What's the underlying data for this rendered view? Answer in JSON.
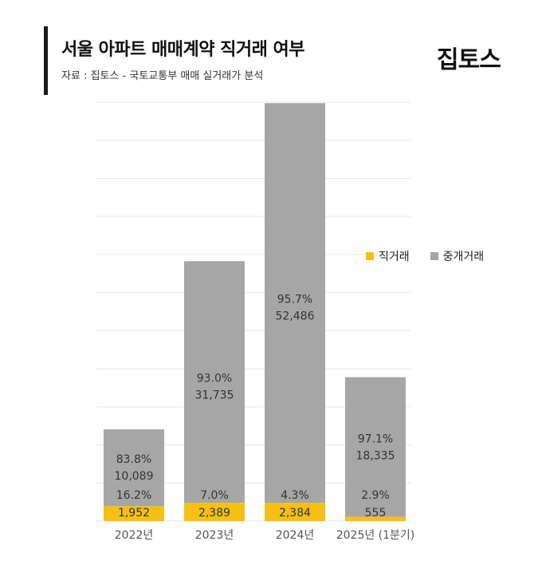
{
  "header": {
    "title": "서울 아파트 매매계약 직거래 여부",
    "subtitle": "자료 : 집토스 - 국토교통부 매매 실거래가 분석",
    "logo_text": "집토스"
  },
  "colors": {
    "direct": "#f5bf14",
    "broker": "#a6a6a6",
    "grid": "#e6e6e6",
    "text": "#333333"
  },
  "chart_data": {
    "type": "bar",
    "stacked": true,
    "categories": [
      "2022년",
      "2023년",
      "2024년",
      "2025년 (1분기)"
    ],
    "series": [
      {
        "name": "직거래",
        "values": [
          1952,
          2389,
          2384,
          555
        ],
        "labels": [
          "1,952",
          "2,389",
          "2,384",
          "555"
        ],
        "percent_labels": [
          "16.2%",
          "7.0%",
          "4.3%",
          "2.9%"
        ]
      },
      {
        "name": "중개거래",
        "values": [
          10089,
          31735,
          52486,
          18335
        ],
        "labels": [
          "10,089",
          "31,735",
          "52,486",
          "18,335"
        ],
        "percent_labels": [
          "83.8%",
          "93.0%",
          "95.7%",
          "97.1%"
        ]
      }
    ],
    "ylim": [
      0,
      55000
    ],
    "grid": true,
    "legend": "right",
    "xlabel": "",
    "ylabel": ""
  }
}
